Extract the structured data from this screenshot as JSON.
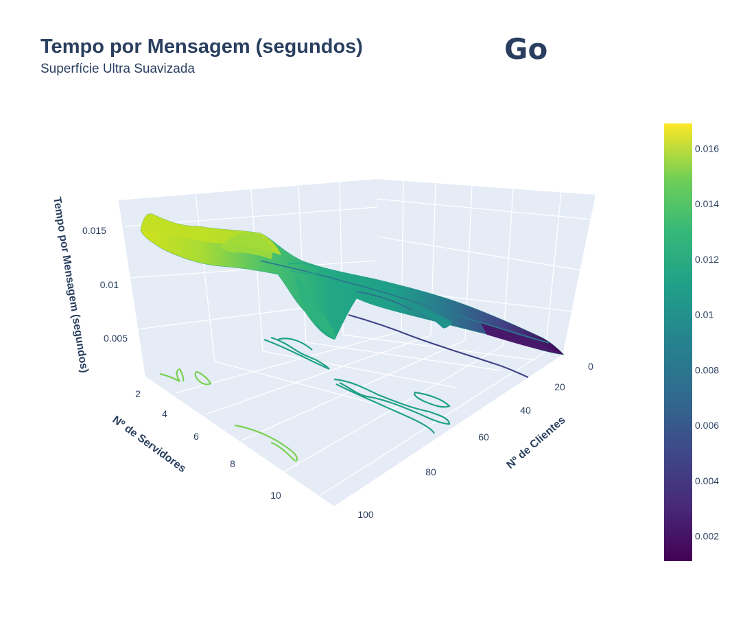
{
  "chart_data": {
    "type": "surface",
    "title": "Tempo por Mensagem (segundos)",
    "subtitle": "Superfície Ultra Suavizada",
    "language_label": "Go",
    "xlabel": "Nº de Clientes",
    "ylabel": "Nº de Servidores",
    "zlabel": "Tempo por Mensagem (segundos)",
    "x_ticks": [
      "0",
      "20",
      "40",
      "60",
      "80",
      "100"
    ],
    "y_ticks": [
      "2",
      "4",
      "6",
      "8",
      "10"
    ],
    "z_ticks": [
      "0.005",
      "0.01",
      "0.015"
    ],
    "colorscale": "viridis",
    "colorbar": {
      "range": [
        0.0011,
        0.0169
      ],
      "ticks": [
        "0.002",
        "0.004",
        "0.006",
        "0.008",
        "0.01",
        "0.012",
        "0.014",
        "0.016"
      ],
      "tick_values": [
        0.002,
        0.004,
        0.006,
        0.008,
        0.01,
        0.012,
        0.014,
        0.016
      ]
    },
    "x_range": [
      0,
      100
    ],
    "y_range": [
      1,
      11
    ],
    "z_range": [
      0.001,
      0.017
    ],
    "grid": true,
    "surface_ridge": [
      {
        "x": 100,
        "z_by_servers": [
          0.016,
          0.0152,
          0.0146,
          0.014,
          0.0135
        ]
      },
      {
        "x": 90,
        "z_by_servers": [
          0.015,
          0.014,
          0.015,
          0.0132,
          0.012
        ]
      },
      {
        "x": 80,
        "z_by_servers": [
          0.0145,
          0.0135,
          0.0155,
          0.0125,
          0.011
        ]
      },
      {
        "x": 70,
        "z_by_servers": [
          0.0135,
          0.0125,
          0.013,
          0.0085,
          0.01
        ]
      },
      {
        "x": 60,
        "z_by_servers": [
          0.0125,
          0.012,
          0.011,
          0.0095,
          0.0095
        ]
      },
      {
        "x": 50,
        "z_by_servers": [
          0.0115,
          0.011,
          0.0105,
          0.01,
          0.009
        ]
      },
      {
        "x": 40,
        "z_by_servers": [
          0.0105,
          0.01,
          0.0095,
          0.009,
          0.0085
        ]
      },
      {
        "x": 30,
        "z_by_servers": [
          0.009,
          0.0085,
          0.008,
          0.0075,
          0.0072
        ]
      },
      {
        "x": 20,
        "z_by_servers": [
          0.0065,
          0.006,
          0.0058,
          0.0055,
          0.0052
        ]
      },
      {
        "x": 10,
        "z_by_servers": [
          0.004,
          0.0037,
          0.0035,
          0.0033,
          0.0031
        ]
      },
      {
        "x": 0,
        "z_by_servers": [
          0.002,
          0.0018,
          0.0016,
          0.0014,
          0.0012
        ]
      }
    ]
  }
}
